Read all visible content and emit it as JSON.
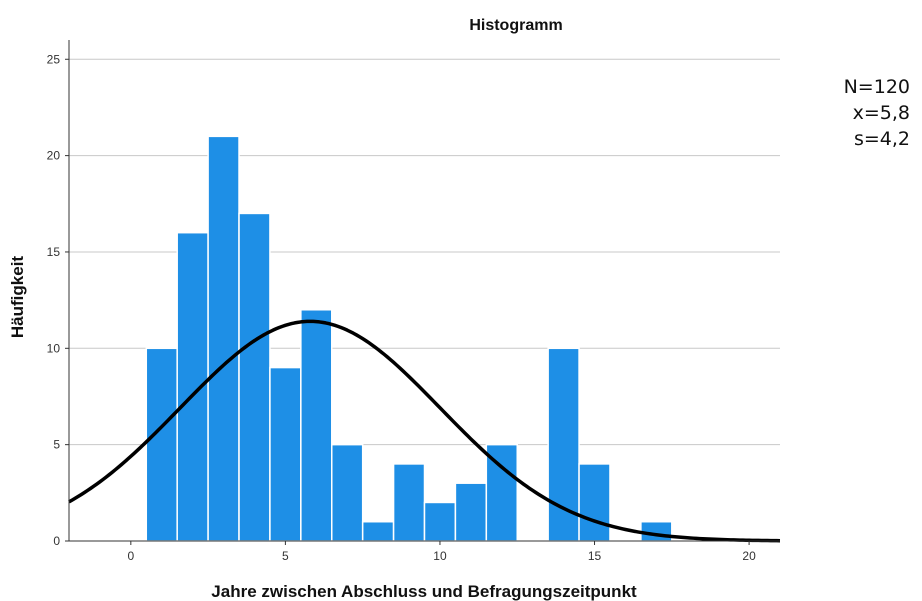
{
  "chart_data": {
    "type": "bar",
    "title": "Histogramm",
    "xlabel": "Jahre zwischen Abschluss und Befragungszeitpunkt",
    "ylabel": "Häufigkeit",
    "xlim": [
      -2,
      21
    ],
    "ylim": [
      0,
      26
    ],
    "xticks": [
      0,
      5,
      10,
      15,
      20
    ],
    "yticks": [
      0,
      5,
      10,
      15,
      20,
      25
    ],
    "bin_width": 1,
    "bins": [
      {
        "x": 1,
        "count": 10
      },
      {
        "x": 2,
        "count": 16
      },
      {
        "x": 3,
        "count": 21
      },
      {
        "x": 4,
        "count": 17
      },
      {
        "x": 5,
        "count": 9
      },
      {
        "x": 6,
        "count": 12
      },
      {
        "x": 7,
        "count": 5
      },
      {
        "x": 8,
        "count": 1
      },
      {
        "x": 9,
        "count": 4
      },
      {
        "x": 10,
        "count": 2
      },
      {
        "x": 11,
        "count": 3
      },
      {
        "x": 12,
        "count": 5
      },
      {
        "x": 14,
        "count": 10
      },
      {
        "x": 15,
        "count": 4
      },
      {
        "x": 17,
        "count": 1
      }
    ],
    "normal_curve": {
      "n": 120,
      "mean": 5.8,
      "sd": 4.2
    },
    "grid": true,
    "bar_color": "#1e8fe6",
    "curve_color": "#000000"
  },
  "stats": {
    "n_label": "N=120",
    "mean_label": "x=5,8",
    "sd_label": "s=4,2"
  }
}
